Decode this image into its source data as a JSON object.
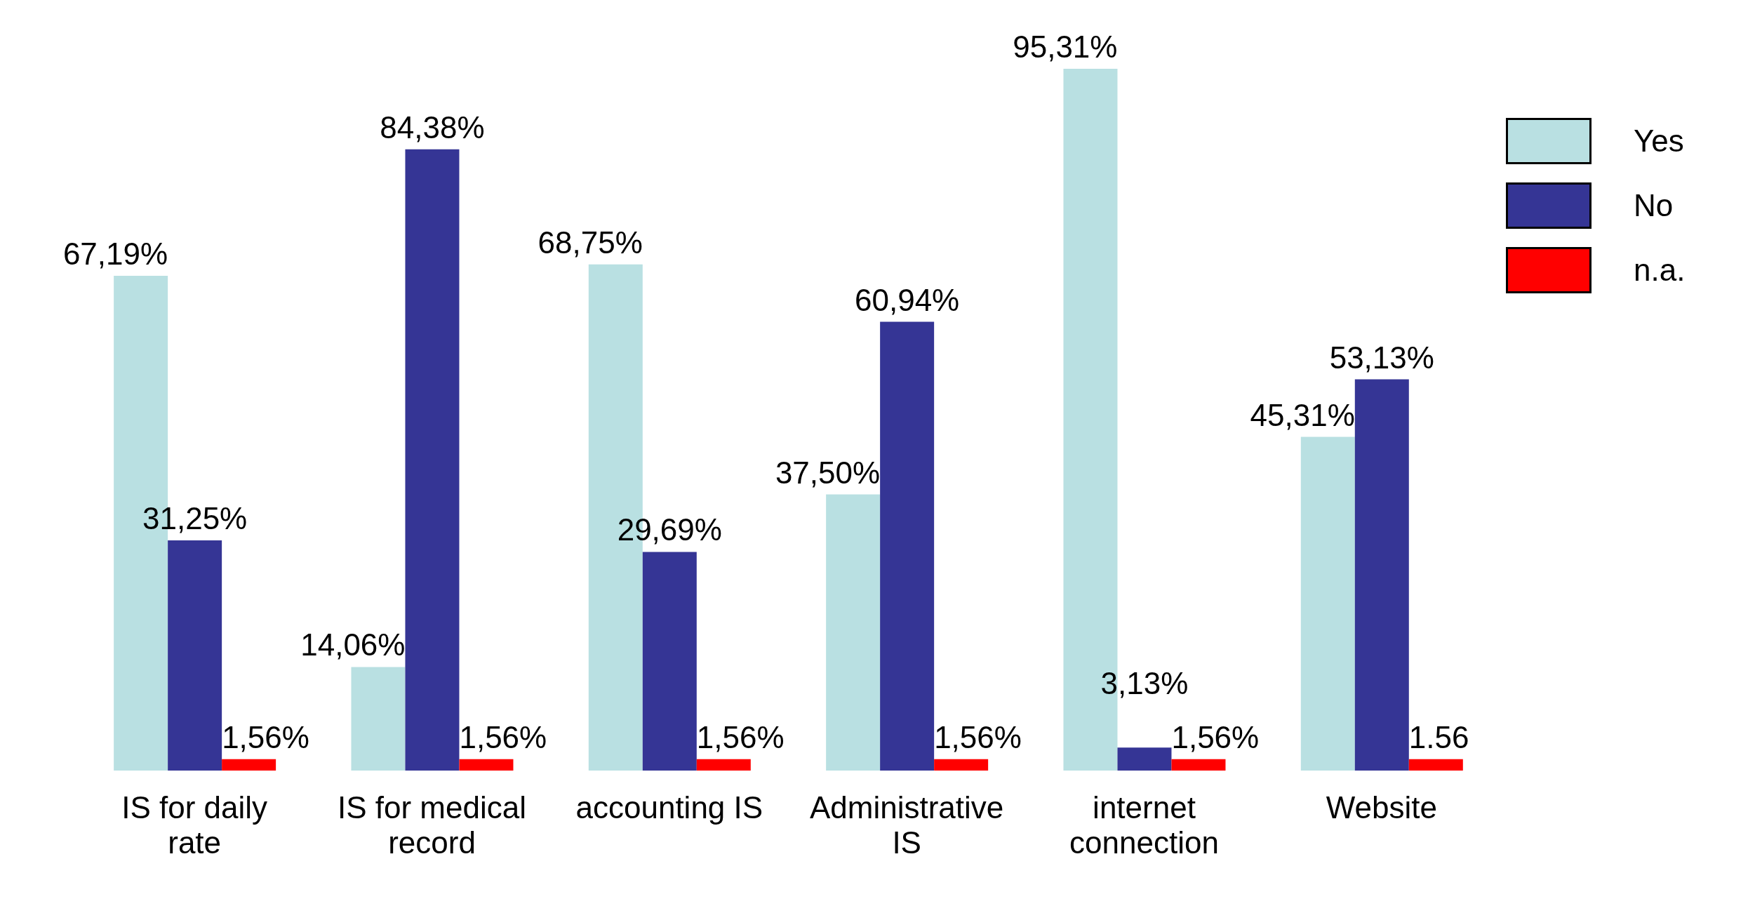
{
  "chart_data": {
    "type": "bar",
    "categories": [
      "IS for daily rate",
      "IS for medical record",
      "accounting IS",
      "Administrative IS",
      "internet connection",
      "Website"
    ],
    "series": [
      {
        "name": "Yes",
        "color": "#b9e0e2",
        "values": [
          67.19,
          14.06,
          68.75,
          37.5,
          95.31,
          45.31
        ],
        "value_labels": [
          "67,19%",
          "14,06%",
          "68,75%",
          "37,50%",
          "95,31%",
          "45,31%"
        ]
      },
      {
        "name": "No",
        "color": "#353595",
        "values": [
          31.25,
          84.38,
          29.69,
          60.94,
          3.13,
          53.13
        ],
        "value_labels": [
          "31,25%",
          "84,38%",
          "29,69%",
          "60,94%",
          "3,13%",
          "53,13%"
        ]
      },
      {
        "name": "n.a.",
        "color": "#ff0000",
        "values": [
          1.56,
          1.56,
          1.56,
          1.56,
          1.56,
          1.56
        ],
        "value_labels": [
          "1,56%",
          "1,56%",
          "1,56%",
          "1,56%",
          "1,56%",
          "1.56"
        ]
      }
    ],
    "legend": "top right",
    "grid": false
  }
}
